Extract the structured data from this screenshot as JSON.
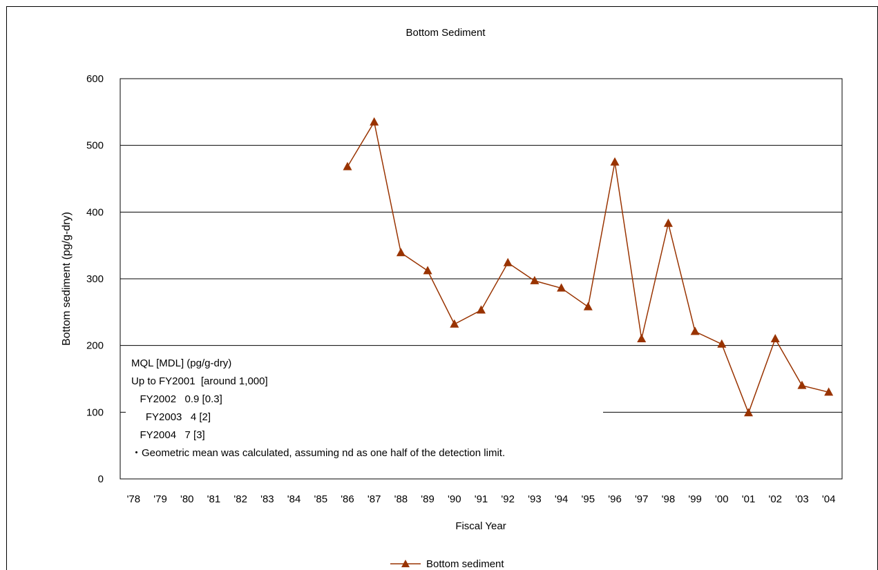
{
  "chart_data": {
    "type": "line",
    "title": "Bottom Sediment",
    "xlabel": "Fiscal Year",
    "ylabel": "Bottom sediment (pg/g-dry)",
    "ylim": [
      0,
      600
    ],
    "yticks": [
      0,
      100,
      200,
      300,
      400,
      500,
      600
    ],
    "grid": true,
    "legend_position": "bottom",
    "categories": [
      "'78",
      "'79",
      "'80",
      "'81",
      "'82",
      "'83",
      "'84",
      "'85",
      "'86",
      "'87",
      "'88",
      "'89",
      "'90",
      "'91",
      "'92",
      "'93",
      "'94",
      "'95",
      "'96",
      "'97",
      "'98",
      "'99",
      "'00",
      "'01",
      "'02",
      "'03",
      "'04"
    ],
    "series": [
      {
        "name": "Bottom sediment",
        "color": "#993300",
        "marker": "triangle",
        "values": [
          null,
          null,
          null,
          null,
          null,
          null,
          null,
          null,
          468,
          535,
          339,
          312,
          232,
          253,
          324,
          297,
          286,
          258,
          475,
          210,
          383,
          221,
          202,
          99,
          210,
          140,
          130
        ]
      }
    ],
    "annotations": [
      "MQL [MDL] (pg/g-dry)",
      "Up to FY2001  [around 1,000]",
      "   FY2002   0.9 [0.3]",
      "     FY2003   4 [2]",
      "   FY2004   7 [3]",
      "・Geometric mean was calculated, assuming nd as one half of the detection limit."
    ]
  }
}
